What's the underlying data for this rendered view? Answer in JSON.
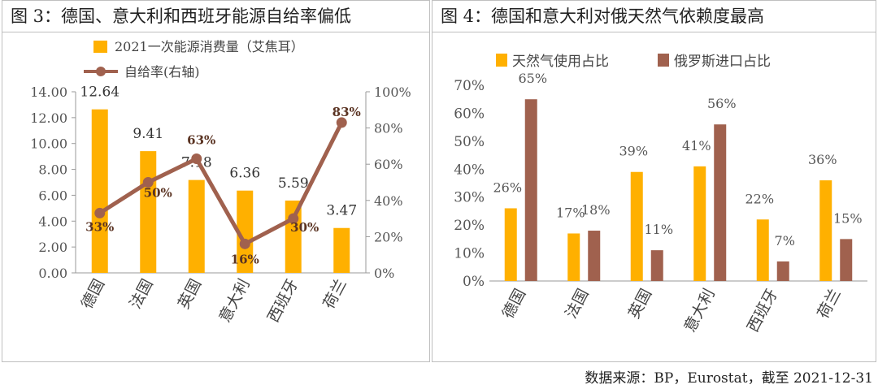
{
  "panels": {
    "left_title": "图 3：德国、意大利和西班牙能源自给率偏低",
    "right_title": "图 4：德国和意大利对俄天然气依赖度最高"
  },
  "source_note": "数据来源：BP，Eurostat，截至 2021-12-31",
  "chart_data": [
    {
      "type": "bar",
      "categories": [
        "德国",
        "法国",
        "英国",
        "意大利",
        "西班牙",
        "荷兰"
      ],
      "series": [
        {
          "name": "2021一次能源消费量（艾焦耳）",
          "type": "bar",
          "axis": "left",
          "values": [
            12.64,
            9.41,
            7.18,
            6.36,
            5.59,
            3.47
          ],
          "labels": [
            "12.64",
            "9.41",
            "7.18",
            "6.36",
            "5.59",
            "3.47"
          ]
        },
        {
          "name": "自给率(右轴)",
          "type": "line",
          "axis": "right",
          "values": [
            33,
            50,
            63,
            16,
            30,
            83
          ],
          "labels": [
            "33%",
            "50%",
            "63%",
            "16%",
            "30%",
            "83%"
          ]
        }
      ],
      "ylim_left": [
        0,
        14
      ],
      "yticks_left": [
        "0.00",
        "2.00",
        "4.00",
        "6.00",
        "8.00",
        "10.00",
        "12.00",
        "14.00"
      ],
      "ylim_right": [
        0,
        100
      ],
      "yticks_right": [
        "0%",
        "20%",
        "40%",
        "60%",
        "80%",
        "100%"
      ],
      "legend": "top",
      "colors": {
        "bar": "#ffb000",
        "line": "#a0614e"
      }
    },
    {
      "type": "bar",
      "categories": [
        "德国",
        "法国",
        "英国",
        "意大利",
        "西班牙",
        "荷兰"
      ],
      "series": [
        {
          "name": "天然气使用占比",
          "values": [
            26,
            17,
            39,
            41,
            22,
            36
          ],
          "labels": [
            "26%",
            "17%",
            "39%",
            "41%",
            "22%",
            "36%"
          ]
        },
        {
          "name": "俄罗斯进口占比",
          "values": [
            65,
            18,
            11,
            56,
            7,
            15
          ],
          "labels": [
            "65%",
            "18%",
            "11%",
            "56%",
            "7%",
            "15%"
          ]
        }
      ],
      "ylim": [
        0,
        70
      ],
      "yticks": [
        "0%",
        "10%",
        "20%",
        "30%",
        "40%",
        "50%",
        "60%",
        "70%"
      ],
      "legend": "top",
      "colors": {
        "series1": "#ffb000",
        "series2": "#a0614e"
      }
    }
  ]
}
